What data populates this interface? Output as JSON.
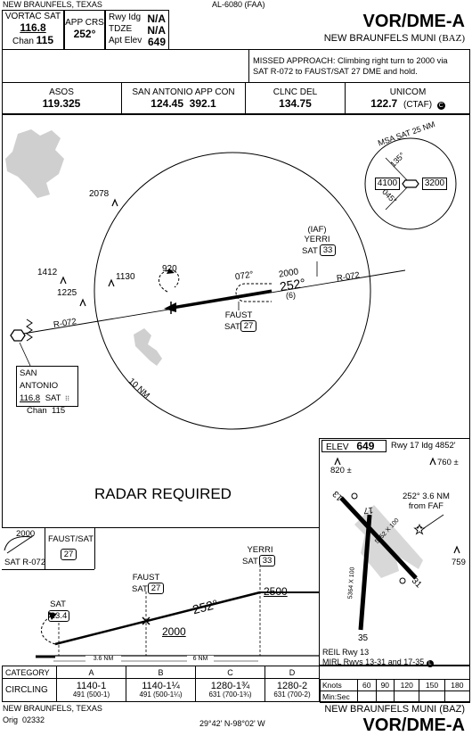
{
  "header": {
    "location": "NEW BRAUNFELS, TEXAS",
    "chart_id": "AL-6080 (FAA)",
    "title": "VOR/DME-A",
    "airport": "NEW BRAUNFELS MUNI",
    "airport_id": "(BAZ)"
  },
  "info": {
    "vortac_label": "VORTAC SAT",
    "vortac_freq": "116.8",
    "vortac_chan_label": "Chan",
    "vortac_chan": "115",
    "app_crs_label": "APP CRS",
    "app_crs": "252°",
    "rwy_idg_label": "Rwy Idg",
    "rwy_idg": "N/A",
    "tdze_label": "TDZE",
    "tdze": "N/A",
    "apt_elev_label": "Apt Elev",
    "apt_elev": "649"
  },
  "missed_approach": {
    "line1": "MISSED APPROACH:  Climbing right turn to 2000 via",
    "line2": "SAT R-072 to FAUST/SAT 27 DME and hold."
  },
  "comms": [
    {
      "name": "ASOS",
      "freq": "119.325"
    },
    {
      "name": "SAN ANTONIO APP CON",
      "freq": "124.45  392.1"
    },
    {
      "name": "CLNC DEL",
      "freq": "134.75"
    },
    {
      "name": "UNICOM",
      "freq": "122.7",
      "extra": "(CTAF)"
    }
  ],
  "plan": {
    "msa_title": "MSA SAT 25 NM",
    "msa_left": "4100",
    "msa_right": "3200",
    "msa_brg1": "135°",
    "msa_brg2": "045°",
    "alt_2078": "2078",
    "alt_1412": "1412",
    "alt_1225": "1225",
    "alt_1130": "1130",
    "hold_920": "920",
    "crs_072": "072°",
    "alt_2000": "2000",
    "crs_252": "252°",
    "dist_6": "(6)",
    "iaf": "(IAF)",
    "yerri": "YERRI",
    "yerri_sat": "SAT",
    "yerri_dme": "33",
    "faust": "FAUST",
    "faust_sat": "SAT",
    "faust_dme": "27",
    "r072_right": "R-072",
    "r072_left": "R-072",
    "ring": "10 NM",
    "radar": "RADAR REQUIRED",
    "sa_name": "SAN ANTONIO",
    "sa_freq": "116.8",
    "sa_id": "SAT",
    "sa_chan": "Chan  115"
  },
  "airport_diagram": {
    "elev_label": "ELEV",
    "elev": "649",
    "rwy_info": "Rwy 17 ldg 4852'",
    "obs1": "820 ±",
    "obs2": "760 ±",
    "faf_note1": "252° 3.6 NM",
    "faf_note2": "from FAF",
    "obs3": "759",
    "rwy13": "13",
    "rwy31": "31",
    "rwy17": "17",
    "rwy35": "35",
    "dim1": "5352 X 100",
    "dim2": "5364 X 100",
    "reil": "REIL Rwy 13",
    "mirl": "MIRL Rwys 13-31 and 17-35"
  },
  "profile": {
    "hold_alt": "2000",
    "hold_rad": "SAT R-072",
    "hold_fix": "FAUST/SAT",
    "hold_dme": "27",
    "yerri": "YERRI",
    "yerri_sat": "SAT",
    "yerri_dme": "33",
    "faust": "FAUST",
    "faust_sat": "SAT",
    "faust_dme": "27",
    "sat": "SAT",
    "sat_dme": "23.4",
    "alt_2500": "2500",
    "alt_2000": "2000",
    "crs": "252°",
    "dist1": "3.6 NM",
    "dist2": "6 NM"
  },
  "minimums": {
    "category_label": "CATEGORY",
    "cats": [
      "A",
      "B",
      "C",
      "D"
    ],
    "circling_label": "CIRCLING",
    "rows": [
      {
        "main": "1140-1",
        "sub": "491 (500-1)"
      },
      {
        "main": "1140-1¼",
        "sub": "491 (500-1¼)"
      },
      {
        "main": "1280-1¾",
        "sub": "631 (700-1¾)"
      },
      {
        "main": "1280-2",
        "sub": "631 (700-2)"
      }
    ]
  },
  "speed_table": {
    "knots_label": "Knots",
    "speeds": [
      "60",
      "90",
      "120",
      "150",
      "180"
    ],
    "minsec_label": "Min:Sec"
  },
  "footer": {
    "location": "NEW BRAUNFELS, TEXAS",
    "orig": "Orig  02332",
    "coords": "29°42' N-98°02' W",
    "airport": "NEW BRAUNFELS MUNI (BAZ)",
    "title": "VOR/DME-A"
  }
}
